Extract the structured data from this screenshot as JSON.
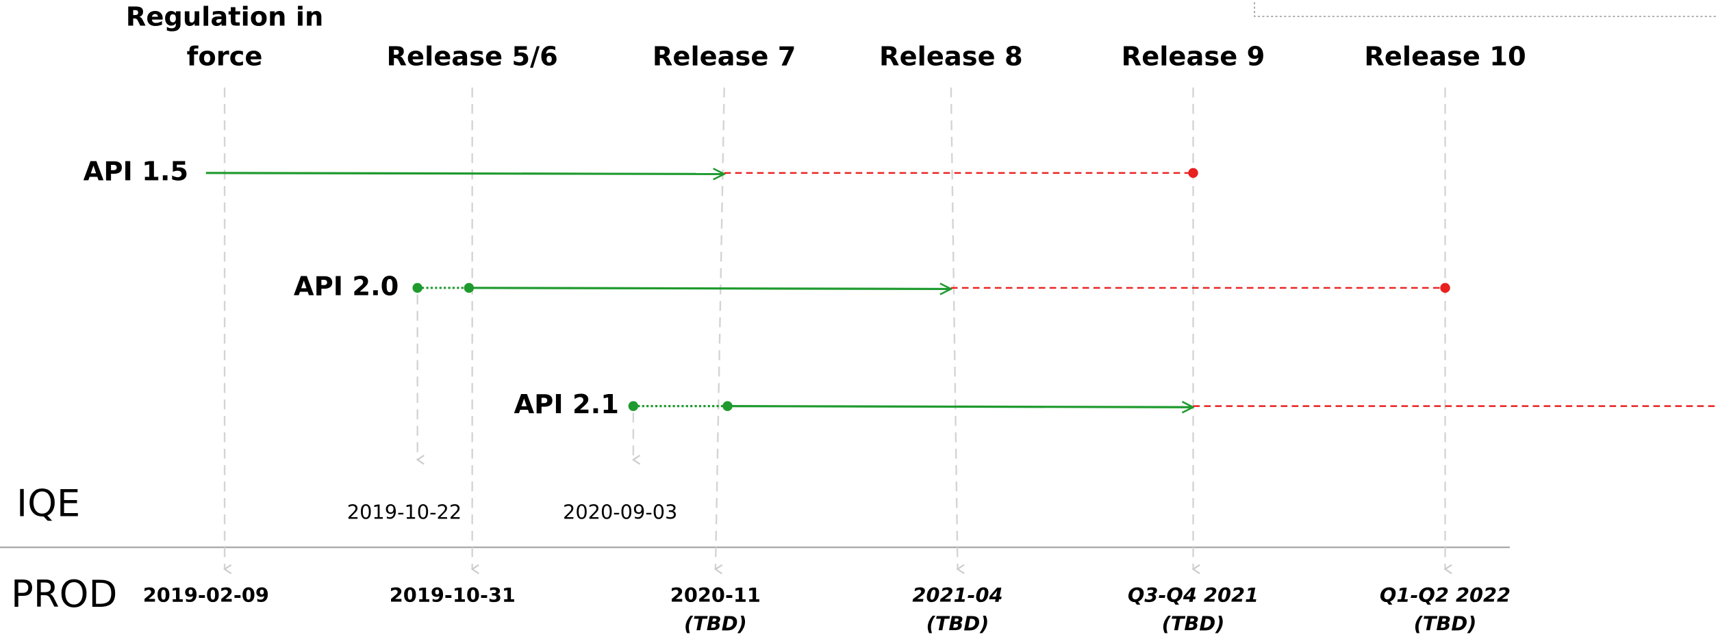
{
  "row_labels": {
    "iqe": "IQE",
    "prod": "PROD"
  },
  "releases": [
    {
      "name_lines": [
        "Regulation in",
        "force"
      ],
      "prod_date": "2019-02-09"
    },
    {
      "name_lines": [
        "Release 5/6"
      ],
      "prod_date": "2019-10-31"
    },
    {
      "name_lines": [
        "Release 7"
      ],
      "prod_date": "2020-11",
      "prod_note": "(TBD)"
    },
    {
      "name_lines": [
        "Release 8"
      ],
      "prod_date": "2021-04",
      "prod_note": "(TBD)"
    },
    {
      "name_lines": [
        "Release 9"
      ],
      "prod_date": "Q3-Q4 2021",
      "prod_note": "(TBD)"
    },
    {
      "name_lines": [
        "Release 10"
      ],
      "prod_date": "Q1-Q2 2022",
      "prod_note": "(TBD)"
    }
  ],
  "apis": [
    {
      "name": "API 1.5"
    },
    {
      "name": "API 2.0",
      "iqe_date": "2019-10-22"
    },
    {
      "name": "API 2.1",
      "iqe_date": "2020-09-03"
    }
  ]
}
